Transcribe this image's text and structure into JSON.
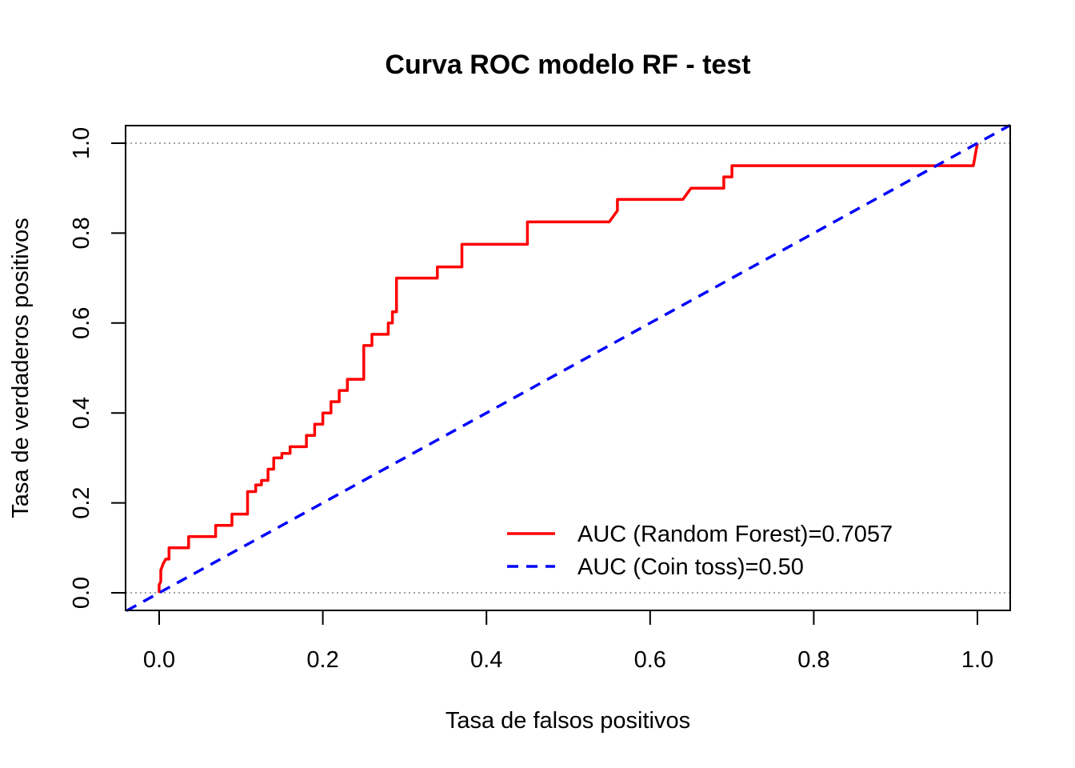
{
  "chart_data": {
    "type": "line",
    "title": "Curva ROC modelo RF - test",
    "xlabel": "Tasa de falsos positivos",
    "ylabel": "Tasa de verdaderos positivos",
    "xlim": [
      -0.04,
      1.04
    ],
    "ylim": [
      -0.04,
      1.04
    ],
    "x_ticks": [
      "0.0",
      "0.2",
      "0.4",
      "0.6",
      "0.8",
      "1.0"
    ],
    "y_ticks": [
      "0.0",
      "0.2",
      "0.4",
      "0.6",
      "0.8",
      "1.0"
    ],
    "grid": "dotted horizontal reference lines at y=0 and y=1",
    "legend_position": "bottom-right",
    "series": [
      {
        "name": "AUC (Random Forest)=0.7057",
        "color": "#ff0000",
        "style": "solid",
        "x": [
          0.0,
          0.0,
          0.002,
          0.002,
          0.005,
          0.008,
          0.012,
          0.012,
          0.036,
          0.036,
          0.069,
          0.069,
          0.089,
          0.089,
          0.108,
          0.108,
          0.118,
          0.118,
          0.125,
          0.125,
          0.133,
          0.133,
          0.14,
          0.14,
          0.15,
          0.15,
          0.16,
          0.16,
          0.18,
          0.18,
          0.19,
          0.19,
          0.2,
          0.2,
          0.21,
          0.21,
          0.22,
          0.22,
          0.23,
          0.23,
          0.25,
          0.25,
          0.26,
          0.26,
          0.28,
          0.28,
          0.285,
          0.285,
          0.29,
          0.29,
          0.34,
          0.34,
          0.37,
          0.37,
          0.45,
          0.45,
          0.53,
          0.55,
          0.56,
          0.56,
          0.64,
          0.65,
          0.69,
          0.69,
          0.7,
          0.7,
          0.995,
          1.0
        ],
        "y": [
          0.0,
          0.018,
          0.025,
          0.05,
          0.065,
          0.075,
          0.075,
          0.1,
          0.1,
          0.125,
          0.125,
          0.15,
          0.15,
          0.175,
          0.175,
          0.225,
          0.225,
          0.24,
          0.24,
          0.25,
          0.25,
          0.275,
          0.275,
          0.3,
          0.3,
          0.31,
          0.31,
          0.325,
          0.325,
          0.35,
          0.35,
          0.375,
          0.375,
          0.4,
          0.4,
          0.425,
          0.425,
          0.45,
          0.45,
          0.475,
          0.475,
          0.55,
          0.55,
          0.575,
          0.575,
          0.6,
          0.6,
          0.625,
          0.625,
          0.7,
          0.7,
          0.725,
          0.725,
          0.775,
          0.775,
          0.825,
          0.825,
          0.825,
          0.85,
          0.875,
          0.875,
          0.9,
          0.9,
          0.925,
          0.925,
          0.95,
          0.95,
          1.0
        ]
      },
      {
        "name": "AUC (Coin toss)=0.50",
        "color": "#0000ff",
        "style": "dashed",
        "x": [
          -0.04,
          1.04
        ],
        "y": [
          -0.04,
          1.04
        ]
      }
    ]
  }
}
